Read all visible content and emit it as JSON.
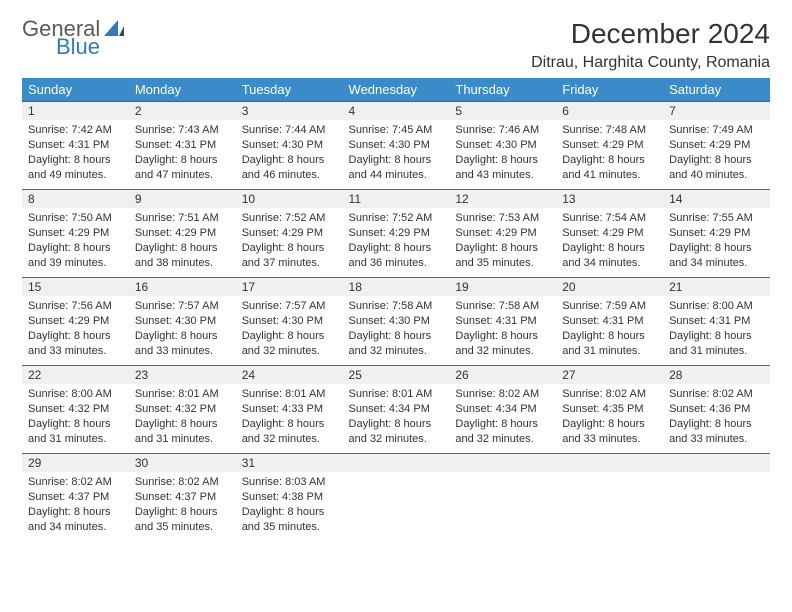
{
  "logo": {
    "general": "General",
    "blue": "Blue"
  },
  "title": "December 2024",
  "location": "Ditrau, Harghita County, Romania",
  "colors": {
    "header_bg": "#3b8bc8",
    "header_text": "#ffffff",
    "daynum_bg": "#f0f0f0",
    "daynum_border": "#2f6b9e",
    "body_text": "#333333",
    "logo_gray": "#5a5a5a",
    "logo_blue": "#2f7bbf",
    "page_bg": "#ffffff"
  },
  "typography": {
    "title_fontsize": 28,
    "location_fontsize": 16,
    "header_fontsize": 13,
    "daynum_fontsize": 12,
    "body_fontsize": 11
  },
  "weekdays": [
    "Sunday",
    "Monday",
    "Tuesday",
    "Wednesday",
    "Thursday",
    "Friday",
    "Saturday"
  ],
  "weeks": [
    [
      {
        "day": "1",
        "sunrise": "Sunrise: 7:42 AM",
        "sunset": "Sunset: 4:31 PM",
        "d1": "Daylight: 8 hours",
        "d2": "and 49 minutes."
      },
      {
        "day": "2",
        "sunrise": "Sunrise: 7:43 AM",
        "sunset": "Sunset: 4:31 PM",
        "d1": "Daylight: 8 hours",
        "d2": "and 47 minutes."
      },
      {
        "day": "3",
        "sunrise": "Sunrise: 7:44 AM",
        "sunset": "Sunset: 4:30 PM",
        "d1": "Daylight: 8 hours",
        "d2": "and 46 minutes."
      },
      {
        "day": "4",
        "sunrise": "Sunrise: 7:45 AM",
        "sunset": "Sunset: 4:30 PM",
        "d1": "Daylight: 8 hours",
        "d2": "and 44 minutes."
      },
      {
        "day": "5",
        "sunrise": "Sunrise: 7:46 AM",
        "sunset": "Sunset: 4:30 PM",
        "d1": "Daylight: 8 hours",
        "d2": "and 43 minutes."
      },
      {
        "day": "6",
        "sunrise": "Sunrise: 7:48 AM",
        "sunset": "Sunset: 4:29 PM",
        "d1": "Daylight: 8 hours",
        "d2": "and 41 minutes."
      },
      {
        "day": "7",
        "sunrise": "Sunrise: 7:49 AM",
        "sunset": "Sunset: 4:29 PM",
        "d1": "Daylight: 8 hours",
        "d2": "and 40 minutes."
      }
    ],
    [
      {
        "day": "8",
        "sunrise": "Sunrise: 7:50 AM",
        "sunset": "Sunset: 4:29 PM",
        "d1": "Daylight: 8 hours",
        "d2": "and 39 minutes."
      },
      {
        "day": "9",
        "sunrise": "Sunrise: 7:51 AM",
        "sunset": "Sunset: 4:29 PM",
        "d1": "Daylight: 8 hours",
        "d2": "and 38 minutes."
      },
      {
        "day": "10",
        "sunrise": "Sunrise: 7:52 AM",
        "sunset": "Sunset: 4:29 PM",
        "d1": "Daylight: 8 hours",
        "d2": "and 37 minutes."
      },
      {
        "day": "11",
        "sunrise": "Sunrise: 7:52 AM",
        "sunset": "Sunset: 4:29 PM",
        "d1": "Daylight: 8 hours",
        "d2": "and 36 minutes."
      },
      {
        "day": "12",
        "sunrise": "Sunrise: 7:53 AM",
        "sunset": "Sunset: 4:29 PM",
        "d1": "Daylight: 8 hours",
        "d2": "and 35 minutes."
      },
      {
        "day": "13",
        "sunrise": "Sunrise: 7:54 AM",
        "sunset": "Sunset: 4:29 PM",
        "d1": "Daylight: 8 hours",
        "d2": "and 34 minutes."
      },
      {
        "day": "14",
        "sunrise": "Sunrise: 7:55 AM",
        "sunset": "Sunset: 4:29 PM",
        "d1": "Daylight: 8 hours",
        "d2": "and 34 minutes."
      }
    ],
    [
      {
        "day": "15",
        "sunrise": "Sunrise: 7:56 AM",
        "sunset": "Sunset: 4:29 PM",
        "d1": "Daylight: 8 hours",
        "d2": "and 33 minutes."
      },
      {
        "day": "16",
        "sunrise": "Sunrise: 7:57 AM",
        "sunset": "Sunset: 4:30 PM",
        "d1": "Daylight: 8 hours",
        "d2": "and 33 minutes."
      },
      {
        "day": "17",
        "sunrise": "Sunrise: 7:57 AM",
        "sunset": "Sunset: 4:30 PM",
        "d1": "Daylight: 8 hours",
        "d2": "and 32 minutes."
      },
      {
        "day": "18",
        "sunrise": "Sunrise: 7:58 AM",
        "sunset": "Sunset: 4:30 PM",
        "d1": "Daylight: 8 hours",
        "d2": "and 32 minutes."
      },
      {
        "day": "19",
        "sunrise": "Sunrise: 7:58 AM",
        "sunset": "Sunset: 4:31 PM",
        "d1": "Daylight: 8 hours",
        "d2": "and 32 minutes."
      },
      {
        "day": "20",
        "sunrise": "Sunrise: 7:59 AM",
        "sunset": "Sunset: 4:31 PM",
        "d1": "Daylight: 8 hours",
        "d2": "and 31 minutes."
      },
      {
        "day": "21",
        "sunrise": "Sunrise: 8:00 AM",
        "sunset": "Sunset: 4:31 PM",
        "d1": "Daylight: 8 hours",
        "d2": "and 31 minutes."
      }
    ],
    [
      {
        "day": "22",
        "sunrise": "Sunrise: 8:00 AM",
        "sunset": "Sunset: 4:32 PM",
        "d1": "Daylight: 8 hours",
        "d2": "and 31 minutes."
      },
      {
        "day": "23",
        "sunrise": "Sunrise: 8:01 AM",
        "sunset": "Sunset: 4:32 PM",
        "d1": "Daylight: 8 hours",
        "d2": "and 31 minutes."
      },
      {
        "day": "24",
        "sunrise": "Sunrise: 8:01 AM",
        "sunset": "Sunset: 4:33 PM",
        "d1": "Daylight: 8 hours",
        "d2": "and 32 minutes."
      },
      {
        "day": "25",
        "sunrise": "Sunrise: 8:01 AM",
        "sunset": "Sunset: 4:34 PM",
        "d1": "Daylight: 8 hours",
        "d2": "and 32 minutes."
      },
      {
        "day": "26",
        "sunrise": "Sunrise: 8:02 AM",
        "sunset": "Sunset: 4:34 PM",
        "d1": "Daylight: 8 hours",
        "d2": "and 32 minutes."
      },
      {
        "day": "27",
        "sunrise": "Sunrise: 8:02 AM",
        "sunset": "Sunset: 4:35 PM",
        "d1": "Daylight: 8 hours",
        "d2": "and 33 minutes."
      },
      {
        "day": "28",
        "sunrise": "Sunrise: 8:02 AM",
        "sunset": "Sunset: 4:36 PM",
        "d1": "Daylight: 8 hours",
        "d2": "and 33 minutes."
      }
    ],
    [
      {
        "day": "29",
        "sunrise": "Sunrise: 8:02 AM",
        "sunset": "Sunset: 4:37 PM",
        "d1": "Daylight: 8 hours",
        "d2": "and 34 minutes."
      },
      {
        "day": "30",
        "sunrise": "Sunrise: 8:02 AM",
        "sunset": "Sunset: 4:37 PM",
        "d1": "Daylight: 8 hours",
        "d2": "and 35 minutes."
      },
      {
        "day": "31",
        "sunrise": "Sunrise: 8:03 AM",
        "sunset": "Sunset: 4:38 PM",
        "d1": "Daylight: 8 hours",
        "d2": "and 35 minutes."
      },
      {
        "empty": true
      },
      {
        "empty": true
      },
      {
        "empty": true
      },
      {
        "empty": true
      }
    ]
  ]
}
